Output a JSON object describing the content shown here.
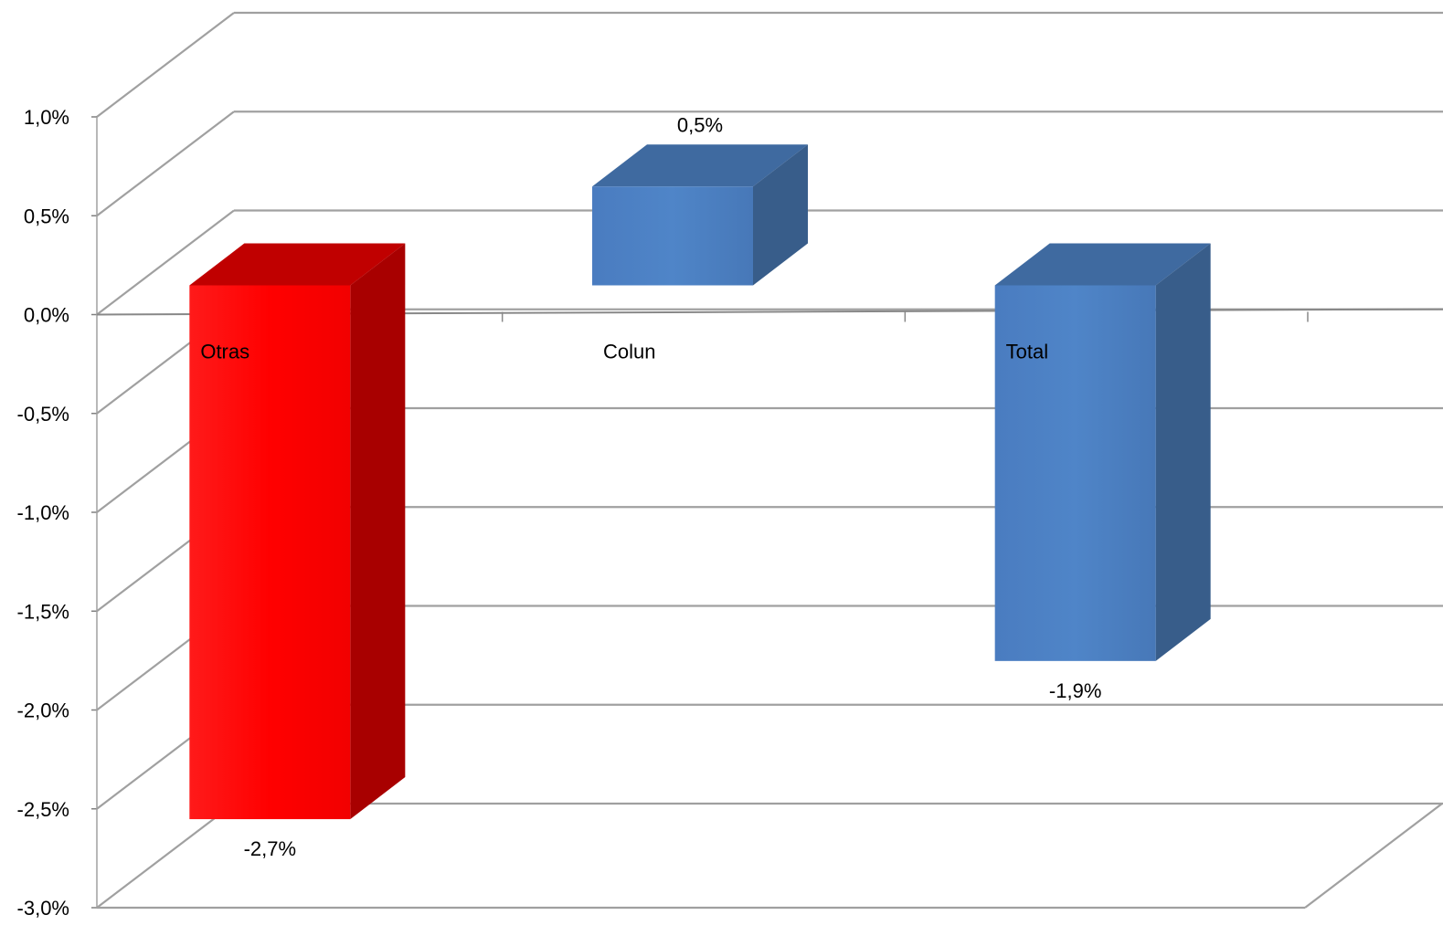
{
  "chart_data": {
    "type": "bar",
    "title": "",
    "xlabel": "",
    "ylabel": "",
    "categories": [
      "Otras",
      "Colun",
      "Total"
    ],
    "values": [
      -2.7,
      0.5,
      -1.9
    ],
    "value_labels": [
      "-2,7%",
      "0,5%",
      "-1,9%"
    ],
    "ylim": [
      -3.0,
      1.0
    ],
    "yticks": [
      1.0,
      0.5,
      0.0,
      -0.5,
      -1.0,
      -1.5,
      -2.0,
      -2.5,
      -3.0
    ],
    "ytick_labels": [
      "1,0%",
      "0,5%",
      "0,0%",
      "-0,5%",
      "-1,0%",
      "-1,5%",
      "-2,0%",
      "-2,5%",
      "-3,0%"
    ],
    "grid": true,
    "style": "3d-column",
    "colors": {
      "Otras": "#ff0000",
      "Colun": "#4f81bd",
      "Total": "#4f81bd",
      "gridline": "#a0a0a0"
    }
  }
}
